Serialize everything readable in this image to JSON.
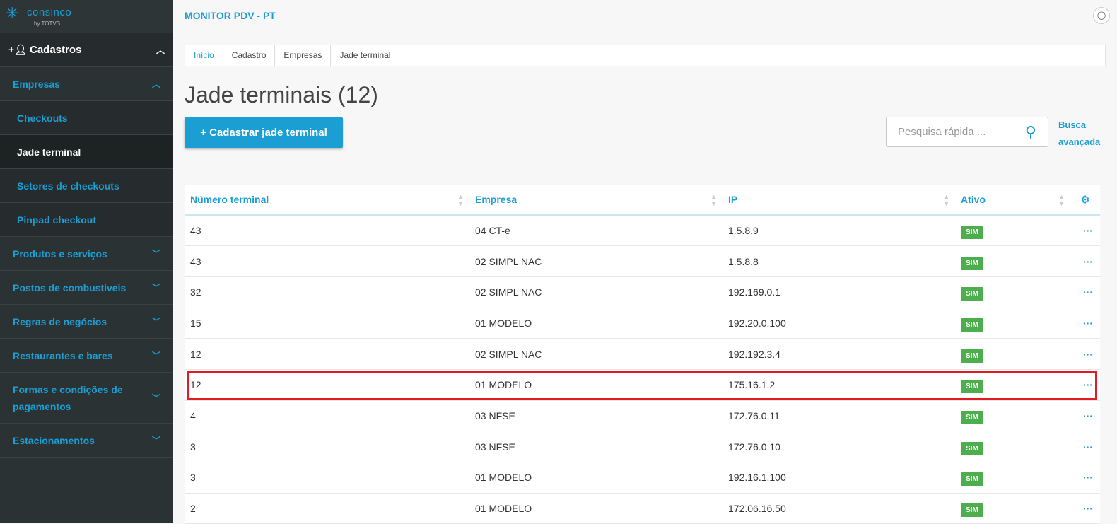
{
  "logo": {
    "brand": "consinco",
    "by": "by TOTVS"
  },
  "sidebar": {
    "section": "Cadastros",
    "group": "Empresas",
    "sub_items": [
      {
        "label": "Checkouts"
      },
      {
        "label": "Jade terminal",
        "active": true
      },
      {
        "label": "Setores de checkouts"
      },
      {
        "label": "Pinpad checkout"
      }
    ],
    "items": [
      {
        "label": "Produtos e serviços"
      },
      {
        "label": "Postos de combustiveis"
      },
      {
        "label": "Regras de negócios"
      },
      {
        "label": "Restaurantes e bares"
      },
      {
        "label": "Formas e condições de pagamentos"
      },
      {
        "label": "Estacionamentos"
      }
    ]
  },
  "header": {
    "title": "MONITOR PDV - PT"
  },
  "breadcrumb": [
    "Início",
    "Cadastro",
    "Empresas",
    "Jade terminal"
  ],
  "page": {
    "title": "Jade terminais (12)",
    "add_label": "+  Cadastrar jade terminal",
    "search_placeholder": "Pesquisa rápida ...",
    "advanced_search": "Busca avançada"
  },
  "table": {
    "columns": [
      "Número terminal",
      "Empresa",
      "IP",
      "Ativo"
    ],
    "rows": [
      [
        "43",
        "04 CT-e",
        "1.5.8.9",
        "SIM"
      ],
      [
        "43",
        "02 SIMPL NAC",
        "1.5.8.8",
        "SIM"
      ],
      [
        "32",
        "02 SIMPL NAC",
        "192.169.0.1",
        "SIM"
      ],
      [
        "15",
        "01 MODELO",
        "192.20.0.100",
        "SIM"
      ],
      [
        "12",
        "02 SIMPL NAC",
        "192.192.3.4",
        "SIM"
      ],
      [
        "12",
        "01 MODELO",
        "175.16.1.2",
        "SIM"
      ],
      [
        "4",
        "03 NFSE",
        "172.76.0.11",
        "SIM"
      ],
      [
        "3",
        "03 NFSE",
        "172.76.0.10",
        "SIM"
      ],
      [
        "3",
        "01 MODELO",
        "192.16.1.100",
        "SIM"
      ],
      [
        "2",
        "01 MODELO",
        "172.06.16.50",
        "SIM"
      ]
    ],
    "highlighted_row": 5
  },
  "colors": {
    "accent": "#1a9ed4",
    "badge": "#4cae4c",
    "highlight": "#e21b23"
  }
}
